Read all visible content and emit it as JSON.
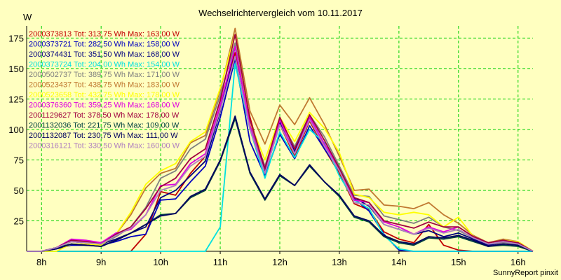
{
  "chart_data": {
    "type": "line",
    "title": "Wechselrichtervergleich vom 10.11.2017",
    "ylabel": "W",
    "footer": "SunnyReport pinxit",
    "ylim": [
      0,
      185
    ],
    "xlim": [
      7.75,
      16.25
    ],
    "yticks": [
      25,
      50,
      75,
      100,
      125,
      150,
      175
    ],
    "xticks": [
      8,
      9,
      10,
      11,
      12,
      13,
      14,
      15,
      16
    ],
    "xtick_labels": [
      "8h",
      "9h",
      "10h",
      "11h",
      "12h",
      "13h",
      "14h",
      "15h",
      "16h"
    ],
    "grid": true,
    "legend_position": "top-left",
    "x": [
      7.75,
      8.0,
      8.25,
      8.5,
      8.75,
      9.0,
      9.25,
      9.5,
      9.75,
      10.0,
      10.25,
      10.5,
      10.75,
      11.0,
      11.25,
      11.5,
      11.75,
      12.0,
      12.25,
      12.5,
      12.75,
      13.0,
      13.25,
      13.5,
      13.75,
      14.0,
      14.25,
      14.5,
      14.75,
      15.0,
      15.25,
      15.5,
      15.75,
      16.0,
      16.25
    ],
    "series": [
      {
        "name": "2000373813 Tot: 313,75 Wh Max: 163,00 W",
        "color": "#c00000",
        "values": [
          0,
          0,
          0,
          0,
          0,
          0,
          0,
          0,
          14,
          49,
          46,
          64,
          78,
          118,
          163,
          110,
          65,
          104,
          78,
          107,
          84,
          64,
          39,
          34,
          16,
          10,
          7,
          22,
          5,
          1,
          0,
          0,
          0,
          0,
          0
        ]
      },
      {
        "name": "2000373721 Tot: 282,50 Wh Max: 158,00 W",
        "color": "#0000c0",
        "values": [
          0,
          0,
          2,
          5,
          5,
          5,
          8,
          12,
          14,
          42,
          43,
          57,
          70,
          110,
          158,
          90,
          62,
          96,
          76,
          103,
          84,
          66,
          43,
          33,
          14,
          1,
          0,
          0,
          0,
          0,
          0,
          0,
          0,
          0,
          0
        ]
      },
      {
        "name": "2000374431 Tot: 351,50 Wh Max: 168,00 W",
        "color": "#000080",
        "values": [
          0,
          0,
          3,
          8,
          7,
          6,
          10,
          15,
          20,
          44,
          50,
          62,
          74,
          115,
          168,
          102,
          65,
          106,
          82,
          110,
          88,
          68,
          44,
          37,
          22,
          18,
          14,
          17,
          12,
          15,
          10,
          5,
          7,
          6,
          0
        ]
      },
      {
        "name": "2000373724 Tot: 204,00 Wh Max: 154,00 W",
        "color": "#00e0e0",
        "values": [
          0,
          0,
          0,
          0,
          0,
          0,
          0,
          0,
          0,
          0,
          0,
          0,
          0,
          20,
          154,
          100,
          60,
          98,
          77,
          100,
          89,
          62,
          42,
          35,
          13,
          2,
          0,
          0,
          0,
          0,
          0,
          0,
          0,
          0,
          0
        ]
      },
      {
        "name": "2000502737 Tot: 389,75 Wh Max: 171,00 W",
        "color": "#808080",
        "values": [
          0,
          0,
          3,
          8,
          7,
          6,
          12,
          20,
          36,
          60,
          66,
          84,
          92,
          128,
          171,
          104,
          70,
          108,
          86,
          112,
          94,
          70,
          46,
          45,
          29,
          26,
          23,
          28,
          20,
          17,
          11,
          6,
          7,
          6,
          0
        ]
      },
      {
        "name": "2000523437 Tot: 438,75 Wh Max: 183,00 W",
        "color": "#c07830",
        "values": [
          0,
          0,
          3,
          9,
          8,
          6,
          14,
          30,
          52,
          64,
          68,
          89,
          95,
          132,
          183,
          115,
          88,
          120,
          104,
          126,
          104,
          78,
          50,
          51,
          38,
          37,
          35,
          40,
          30,
          23,
          13,
          7,
          10,
          8,
          0
        ]
      },
      {
        "name": "2000523658 Tot: 432,75 Wh Max: 178,00 W",
        "color": "#ffff00",
        "values": [
          0,
          0,
          0,
          6,
          6,
          5,
          14,
          32,
          55,
          66,
          72,
          90,
          98,
          134,
          178,
          106,
          75,
          110,
          90,
          114,
          101,
          81,
          47,
          44,
          32,
          30,
          32,
          30,
          20,
          28,
          12,
          6,
          9,
          8,
          0
        ]
      },
      {
        "name": "2000376360 Tot: 359,25 Wh Max: 168,00 W",
        "color": "#e000e0",
        "values": [
          0,
          0,
          3,
          10,
          9,
          7,
          15,
          18,
          30,
          54,
          55,
          72,
          80,
          120,
          168,
          103,
          64,
          108,
          80,
          110,
          88,
          68,
          42,
          40,
          24,
          20,
          14,
          20,
          16,
          20,
          12,
          6,
          8,
          7,
          0
        ]
      },
      {
        "name": "2001129627 Tot: 378,50 Wh Max: 178,00 W",
        "color": "#a00040",
        "values": [
          0,
          0,
          3,
          9,
          8,
          6,
          14,
          20,
          35,
          53,
          60,
          76,
          84,
          124,
          178,
          108,
          68,
          110,
          84,
          112,
          91,
          68,
          44,
          40,
          25,
          22,
          19,
          24,
          20,
          20,
          12,
          7,
          9,
          7,
          0
        ]
      },
      {
        "name": "2001132036 Tot: 221,75 Wh Max: 109,00 W",
        "color": "#004040",
        "values": [
          0,
          0,
          3,
          6,
          5,
          4,
          9,
          15,
          22,
          30,
          31,
          44,
          50,
          74,
          109,
          64,
          42,
          62,
          54,
          70,
          57,
          45,
          28,
          24,
          12,
          7,
          5,
          11,
          10,
          12,
          8,
          4,
          5,
          4,
          0
        ]
      },
      {
        "name": "2001132087 Tot: 230,75 Wh Max: 111,00 W",
        "color": "#000060",
        "values": [
          0,
          0,
          2,
          6,
          5,
          4,
          9,
          15,
          22,
          29,
          31,
          45,
          51,
          75,
          111,
          65,
          43,
          63,
          54,
          71,
          57,
          46,
          29,
          25,
          13,
          8,
          6,
          12,
          11,
          13,
          9,
          4,
          6,
          5,
          0
        ]
      },
      {
        "name": "2000316121 Tot: 330,50 Wh Max: 160,00 W",
        "color": "#b080c0",
        "values": [
          0,
          0,
          3,
          8,
          7,
          6,
          13,
          19,
          30,
          50,
          54,
          70,
          78,
          116,
          160,
          100,
          64,
          104,
          80,
          108,
          86,
          66,
          40,
          38,
          22,
          18,
          14,
          19,
          15,
          18,
          11,
          6,
          8,
          6,
          0
        ]
      }
    ]
  }
}
